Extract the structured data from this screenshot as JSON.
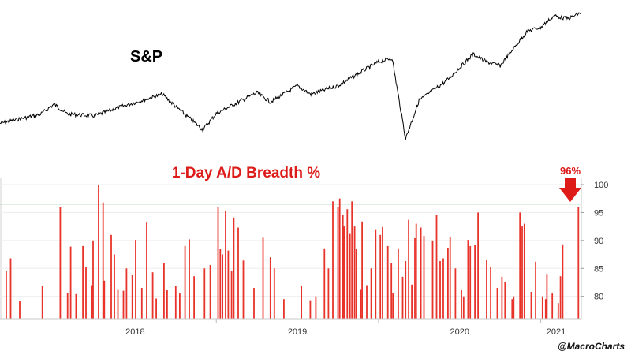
{
  "chart_data": [
    {
      "type": "line",
      "title": "S&P",
      "title_color": "#000000",
      "line_color": "#000000",
      "x_range": [
        "2017-09",
        "2021-04"
      ],
      "series": [
        {
          "x": [
            "2017-09",
            "2017-12",
            "2018-01",
            "2018-02",
            "2018-04",
            "2018-06",
            "2018-09",
            "2018-10",
            "2018-12",
            "2019-01",
            "2019-04",
            "2019-05",
            "2019-07",
            "2019-08",
            "2019-10",
            "2019-12",
            "2020-01",
            "2020-02",
            "2020-03",
            "2020-04",
            "2020-06",
            "2020-08",
            "2020-09",
            "2020-10",
            "2020-12",
            "2021-01",
            "2021-02",
            "2021-03",
            "2021-04"
          ],
          "values": [
            2500,
            2620,
            2750,
            2620,
            2600,
            2720,
            2880,
            2720,
            2420,
            2630,
            2900,
            2780,
            2990,
            2880,
            2990,
            3200,
            3300,
            3350,
            2300,
            2800,
            3050,
            3400,
            3300,
            3250,
            3700,
            3750,
            3900,
            3860,
            3940
          ]
        }
      ]
    },
    {
      "type": "bar",
      "title": "1-Day A/D Breadth %",
      "title_color": "#dd1c1a",
      "bar_color": "#e8332a",
      "ylim": [
        76,
        100
      ],
      "yticks": [
        "100",
        "95",
        "90",
        "85",
        "80"
      ],
      "xticks": [
        "2018",
        "2019",
        "2020",
        "2021"
      ],
      "threshold": 96.5,
      "threshold_color": "#a8d8b8",
      "annotation": {
        "label": "96%",
        "color": "#dd1c1a"
      },
      "x_range": [
        "2017-09",
        "2021-04"
      ],
      "bars": [
        {
          "date": "2017-09-15",
          "value": 84.5
        },
        {
          "date": "2017-09-25",
          "value": 86.8
        },
        {
          "date": "2017-10-15",
          "value": 79.2
        },
        {
          "date": "2017-12-05",
          "value": 81.8
        },
        {
          "date": "2018-01-15",
          "value": 96.0
        },
        {
          "date": "2018-02-01",
          "value": 80.6
        },
        {
          "date": "2018-02-08",
          "value": 88.9
        },
        {
          "date": "2018-02-20",
          "value": 80.4
        },
        {
          "date": "2018-03-05",
          "value": 89.0
        },
        {
          "date": "2018-03-12",
          "value": 85.2
        },
        {
          "date": "2018-03-26",
          "value": 82.0
        },
        {
          "date": "2018-03-28",
          "value": 90.0
        },
        {
          "date": "2018-04-10",
          "value": 100.0
        },
        {
          "date": "2018-04-20",
          "value": 96.8
        },
        {
          "date": "2018-04-23",
          "value": 82.8
        },
        {
          "date": "2018-05-08",
          "value": 91.0
        },
        {
          "date": "2018-05-15",
          "value": 87.5
        },
        {
          "date": "2018-05-23",
          "value": 81.3
        },
        {
          "date": "2018-06-05",
          "value": 81.0
        },
        {
          "date": "2018-06-12",
          "value": 85.0
        },
        {
          "date": "2018-06-25",
          "value": 83.8
        },
        {
          "date": "2018-07-02",
          "value": 90.1
        },
        {
          "date": "2018-07-16",
          "value": 81.5
        },
        {
          "date": "2018-07-27",
          "value": 93.2
        },
        {
          "date": "2018-08-10",
          "value": 84.3
        },
        {
          "date": "2018-08-18",
          "value": 79.6
        },
        {
          "date": "2018-09-05",
          "value": 86.0
        },
        {
          "date": "2018-09-12",
          "value": 81.1
        },
        {
          "date": "2018-10-01",
          "value": 81.9
        },
        {
          "date": "2018-10-10",
          "value": 80.5
        },
        {
          "date": "2018-10-22",
          "value": 89.0
        },
        {
          "date": "2018-11-01",
          "value": 90.2
        },
        {
          "date": "2018-11-12",
          "value": 83.6
        },
        {
          "date": "2018-12-05",
          "value": 85.0
        },
        {
          "date": "2018-12-18",
          "value": 85.6
        },
        {
          "date": "2019-01-05",
          "value": 96.0
        },
        {
          "date": "2019-01-10",
          "value": 88.5
        },
        {
          "date": "2019-01-15",
          "value": 87.5
        },
        {
          "date": "2019-01-22",
          "value": 95.3
        },
        {
          "date": "2019-01-28",
          "value": 88.2
        },
        {
          "date": "2019-02-05",
          "value": 84.6
        },
        {
          "date": "2019-02-10",
          "value": 94.1
        },
        {
          "date": "2019-02-20",
          "value": 92.3
        },
        {
          "date": "2019-03-01",
          "value": 86.4
        },
        {
          "date": "2019-03-25",
          "value": 81.5
        },
        {
          "date": "2019-04-15",
          "value": 90.5
        },
        {
          "date": "2019-05-01",
          "value": 87.0
        },
        {
          "date": "2019-05-10",
          "value": 85.0
        },
        {
          "date": "2019-06-01",
          "value": 79.5
        },
        {
          "date": "2019-07-10",
          "value": 81.9
        },
        {
          "date": "2019-07-30",
          "value": 79.3
        },
        {
          "date": "2019-08-12",
          "value": 80.0
        },
        {
          "date": "2019-09-01",
          "value": 88.6
        },
        {
          "date": "2019-09-10",
          "value": 85.0
        },
        {
          "date": "2019-09-20",
          "value": 97.0
        },
        {
          "date": "2019-10-01",
          "value": 96.0
        },
        {
          "date": "2019-10-05",
          "value": 97.5
        },
        {
          "date": "2019-10-12",
          "value": 94.5
        },
        {
          "date": "2019-10-15",
          "value": 92.5
        },
        {
          "date": "2019-10-22",
          "value": 95.6
        },
        {
          "date": "2019-10-28",
          "value": 91.3
        },
        {
          "date": "2019-11-02",
          "value": 97.0
        },
        {
          "date": "2019-11-08",
          "value": 92.5
        },
        {
          "date": "2019-11-12",
          "value": 88.5
        },
        {
          "date": "2019-11-22",
          "value": 81.3
        },
        {
          "date": "2019-11-25",
          "value": 93.4
        },
        {
          "date": "2019-12-05",
          "value": 82.0
        },
        {
          "date": "2019-12-15",
          "value": 85.0
        },
        {
          "date": "2019-12-25",
          "value": 92.0
        },
        {
          "date": "2020-01-05",
          "value": 91.0
        },
        {
          "date": "2020-01-10",
          "value": 92.4
        },
        {
          "date": "2020-01-22",
          "value": 89.0
        },
        {
          "date": "2020-01-30",
          "value": 85.9
        },
        {
          "date": "2020-02-03",
          "value": 80.6
        },
        {
          "date": "2020-02-15",
          "value": 88.6
        },
        {
          "date": "2020-02-25",
          "value": 83.5
        },
        {
          "date": "2020-03-01",
          "value": 86.3
        },
        {
          "date": "2020-03-08",
          "value": 93.7
        },
        {
          "date": "2020-03-15",
          "value": 82.1
        },
        {
          "date": "2020-03-22",
          "value": 90.4
        },
        {
          "date": "2020-03-25",
          "value": 93.0
        },
        {
          "date": "2020-04-05",
          "value": 92.3
        },
        {
          "date": "2020-04-12",
          "value": 90.8
        },
        {
          "date": "2020-05-01",
          "value": 90.0
        },
        {
          "date": "2020-05-10",
          "value": 94.5
        },
        {
          "date": "2020-05-18",
          "value": 86.3
        },
        {
          "date": "2020-05-25",
          "value": 86.8
        },
        {
          "date": "2020-06-05",
          "value": 88.7
        },
        {
          "date": "2020-06-10",
          "value": 90.6
        },
        {
          "date": "2020-06-22",
          "value": 85.0
        },
        {
          "date": "2020-07-05",
          "value": 81.1
        },
        {
          "date": "2020-07-10",
          "value": 80.0
        },
        {
          "date": "2020-07-20",
          "value": 90.1
        },
        {
          "date": "2020-07-25",
          "value": 89.0
        },
        {
          "date": "2020-08-05",
          "value": 89.2
        },
        {
          "date": "2020-08-12",
          "value": 95.0
        },
        {
          "date": "2020-09-01",
          "value": 86.5
        },
        {
          "date": "2020-09-10",
          "value": 85.3
        },
        {
          "date": "2020-09-25",
          "value": 81.5
        },
        {
          "date": "2020-10-05",
          "value": 83.5
        },
        {
          "date": "2020-10-12",
          "value": 82.5
        },
        {
          "date": "2020-10-28",
          "value": 79.5
        },
        {
          "date": "2020-11-01",
          "value": 80.0
        },
        {
          "date": "2020-11-15",
          "value": 95.0
        },
        {
          "date": "2020-11-20",
          "value": 92.5
        },
        {
          "date": "2020-11-25",
          "value": 93.0
        },
        {
          "date": "2020-12-10",
          "value": 80.8
        },
        {
          "date": "2020-12-20",
          "value": 86.2
        },
        {
          "date": "2021-01-05",
          "value": 80.0
        },
        {
          "date": "2021-01-12",
          "value": 79.5
        },
        {
          "date": "2021-01-15",
          "value": 84.0
        },
        {
          "date": "2021-01-27",
          "value": 80.5
        },
        {
          "date": "2021-02-10",
          "value": 78.8
        },
        {
          "date": "2021-02-15",
          "value": 83.6
        },
        {
          "date": "2021-02-20",
          "value": 89.3
        },
        {
          "date": "2021-03-25",
          "value": 96.0
        }
      ]
    }
  ],
  "credit": "@MacroCharts"
}
